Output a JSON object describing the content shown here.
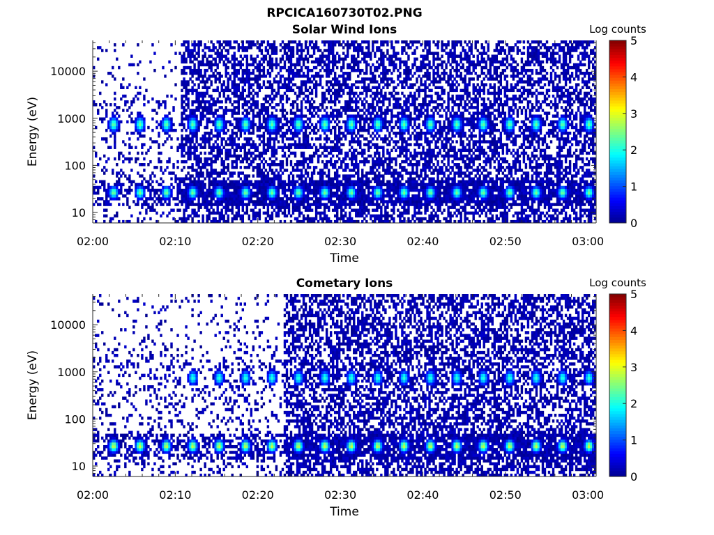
{
  "figure_title": "RPCICA160730T02.PNG",
  "colors": {
    "jet_stops": [
      "#00008f",
      "#0000ff",
      "#00ffff",
      "#ffff00",
      "#ff0000",
      "#800000"
    ],
    "background": "#ffffff"
  },
  "chart_data": [
    {
      "type": "heatmap",
      "title": "Solar Wind Ions",
      "xlabel": "Time",
      "ylabel": "Energy (eV)",
      "x_ticks": [
        "02:00",
        "02:10",
        "02:20",
        "02:30",
        "02:40",
        "02:50",
        "03:00"
      ],
      "y_ticks": [
        "10",
        "100",
        "1000",
        "10000"
      ],
      "y_scale": "log",
      "ylim": [
        6,
        45000
      ],
      "time_range_min": [
        0,
        61
      ],
      "colorbar": {
        "label": "Log counts",
        "range": [
          0,
          5
        ],
        "ticks": [
          "0",
          "1",
          "2",
          "3",
          "4",
          "5"
        ]
      },
      "sweep_start_min": 0.8,
      "sweep_period_min": 3.2,
      "features": [
        {
          "name": "low-energy band",
          "energy_eV": 25,
          "peak_log_counts": 2.5,
          "start_min": 0
        },
        {
          "name": "high-energy band",
          "energy_eV": 700,
          "peak_log_counts": 2.4,
          "start_min": 0
        }
      ],
      "full_coverage_start_min": 10.5
    },
    {
      "type": "heatmap",
      "title": "Cometary Ions",
      "xlabel": "Time",
      "ylabel": "Energy (eV)",
      "x_ticks": [
        "02:00",
        "02:10",
        "02:20",
        "02:30",
        "02:40",
        "02:50",
        "03:00"
      ],
      "y_ticks": [
        "10",
        "100",
        "1000",
        "10000"
      ],
      "y_scale": "log",
      "ylim": [
        6,
        45000
      ],
      "time_range_min": [
        0,
        61
      ],
      "colorbar": {
        "label": "Log counts",
        "range": [
          0,
          5
        ],
        "ticks": [
          "0",
          "1",
          "2",
          "3",
          "4",
          "5"
        ]
      },
      "sweep_start_min": 0.8,
      "sweep_period_min": 3.2,
      "features": [
        {
          "name": "low-energy band",
          "energy_eV": 25,
          "peak_log_counts": 2.9,
          "start_min": 0
        },
        {
          "name": "high-energy band",
          "energy_eV": 700,
          "peak_log_counts": 2.1,
          "start_min": 10
        }
      ],
      "full_coverage_start_min": 23
    }
  ]
}
